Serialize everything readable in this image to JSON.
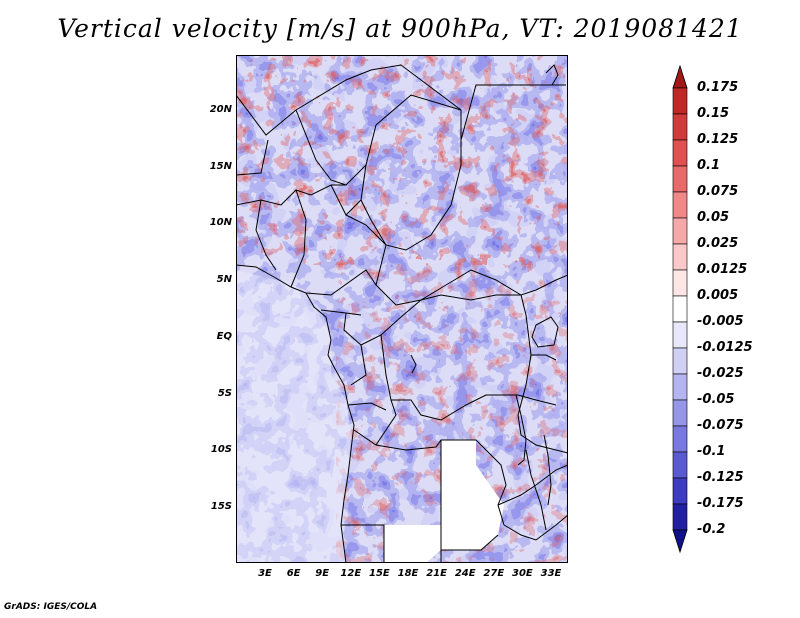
{
  "title": "Vertical velocity [m/s] at 900hPa, VT: 2019081421",
  "footer": "GrADS: IGES/COLA",
  "map": {
    "lat_labels": [
      "20N",
      "15N",
      "10N",
      "5N",
      "EQ",
      "5S",
      "10S",
      "15S"
    ],
    "lon_labels": [
      "3E",
      "6E",
      "9E",
      "12E",
      "15E",
      "18E",
      "21E",
      "24E",
      "27E",
      "30E",
      "33E"
    ],
    "lat_range": [
      -20,
      25
    ],
    "lon_range": [
      0,
      35
    ]
  },
  "colorbar": {
    "labels": [
      "0.175",
      "0.15",
      "0.125",
      "0.1",
      "0.075",
      "0.05",
      "0.025",
      "0.0125",
      "0.005",
      "-0.005",
      "-0.0125",
      "-0.025",
      "-0.05",
      "-0.075",
      "-0.1",
      "-0.125",
      "-0.175",
      "-0.2"
    ],
    "colors": [
      "#a01818",
      "#c02828",
      "#d03c3c",
      "#e05050",
      "#e86a6a",
      "#f08888",
      "#f5a8a8",
      "#fac8c8",
      "#fde6e6",
      "#ffffff",
      "#e8e8fa",
      "#d0d0f5",
      "#b4b4f0",
      "#9696e8",
      "#7878e0",
      "#5a5ad0",
      "#3c3cc0",
      "#2020a0",
      "#10108a"
    ]
  }
}
